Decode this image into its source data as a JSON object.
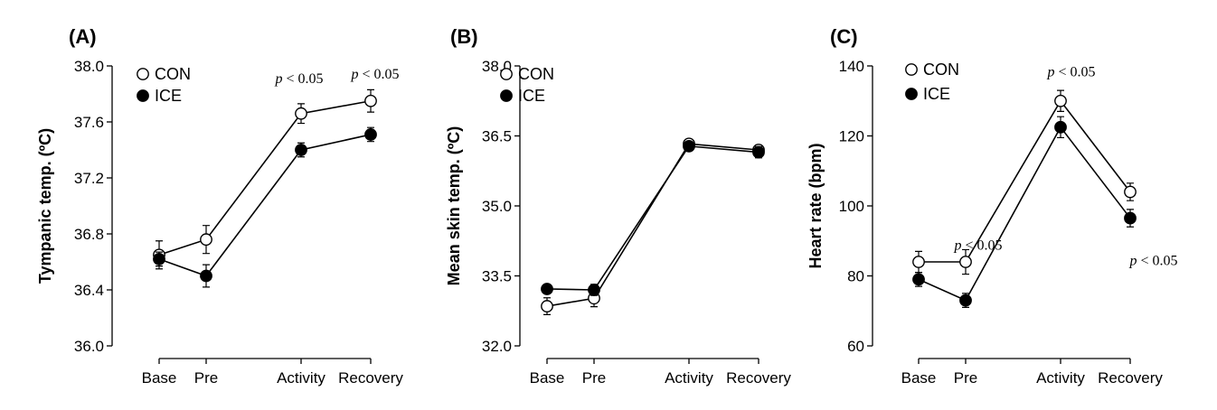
{
  "chart_data": [
    {
      "type": "line",
      "panel": "(A)",
      "ylabel": "Tympanic temp. (ºC)",
      "ylim": [
        36.0,
        38.0
      ],
      "yticks": [
        "36.0",
        "36.4",
        "36.8",
        "37.2",
        "37.6",
        "38.0"
      ],
      "categories": [
        "Base",
        "Pre",
        "Activity",
        "Recovery"
      ],
      "x": [
        0,
        1,
        3,
        4
      ],
      "legend": {
        "position": "top-left",
        "entries": [
          "CON",
          "ICE"
        ]
      },
      "series": [
        {
          "name": "CON",
          "marker": "open-circle",
          "values": [
            36.65,
            36.76,
            37.66,
            37.75
          ],
          "errors": [
            0.1,
            0.1,
            0.07,
            0.08
          ]
        },
        {
          "name": "ICE",
          "marker": "filled-circle",
          "values": [
            36.62,
            36.5,
            37.4,
            37.51
          ],
          "errors": [
            0.05,
            0.08,
            0.05,
            0.05
          ]
        }
      ],
      "annotations": [
        {
          "text": "p < 0.05",
          "x": 3,
          "y": 37.8
        },
        {
          "text": "p < 0.05",
          "x": 4,
          "y": 37.87
        }
      ]
    },
    {
      "type": "line",
      "panel": "(B)",
      "ylabel": "Mean skin temp. (ºC)",
      "ylim": [
        32.0,
        38.0
      ],
      "yticks": [
        "32.0",
        "33.5",
        "35.0",
        "36.5",
        "38.0"
      ],
      "categories": [
        "Base",
        "Pre",
        "Activity",
        "Recovery"
      ],
      "x": [
        0,
        1,
        3,
        4
      ],
      "legend": {
        "position": "top-left",
        "entries": [
          "CON",
          "ICE"
        ]
      },
      "series": [
        {
          "name": "CON",
          "marker": "open-circle",
          "values": [
            32.85,
            33.02,
            36.33,
            36.2
          ],
          "errors": [
            0.18,
            0.18,
            0.08,
            0.1
          ]
        },
        {
          "name": "ICE",
          "marker": "filled-circle",
          "values": [
            33.22,
            33.2,
            36.28,
            36.15
          ],
          "errors": [
            0.05,
            0.12,
            0.08,
            0.12
          ]
        }
      ],
      "annotations": []
    },
    {
      "type": "line",
      "panel": "(C)",
      "ylabel": "Heart rate (bpm)",
      "ylim": [
        60,
        140
      ],
      "yticks": [
        "60",
        "80",
        "100",
        "120",
        "140"
      ],
      "categories": [
        "Base",
        "Pre",
        "Activity",
        "Recovery"
      ],
      "x": [
        0,
        1,
        3,
        4
      ],
      "legend": {
        "position": "top-left",
        "entries": [
          "CON",
          "ICE"
        ]
      },
      "series": [
        {
          "name": "CON",
          "marker": "open-circle",
          "values": [
            84,
            84,
            130,
            104
          ],
          "errors": [
            3,
            3.5,
            3,
            2.5
          ]
        },
        {
          "name": "ICE",
          "marker": "filled-circle",
          "values": [
            79,
            73,
            122.5,
            96.5
          ],
          "errors": [
            2,
            2,
            3,
            2.5
          ]
        }
      ],
      "annotations": [
        {
          "text": "p < 0.05",
          "x": 1,
          "y": 87.5
        },
        {
          "text": "p < 0.05",
          "x": 3,
          "y": 136
        },
        {
          "text": "p < 0.05",
          "x": 4,
          "y": 87
        }
      ]
    }
  ]
}
